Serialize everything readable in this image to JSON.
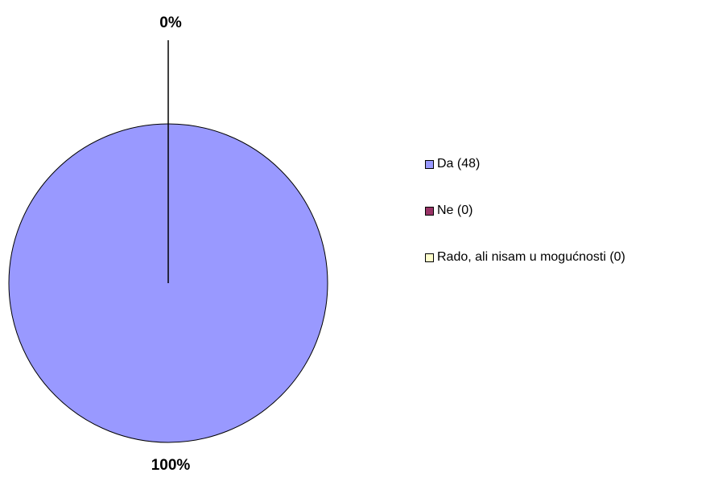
{
  "chart_data": {
    "type": "pie",
    "slices": [
      {
        "label": "Da (48)",
        "value": 48,
        "percent_label": "100%",
        "color": "#9999ff"
      },
      {
        "label": "Ne (0)",
        "value": 0,
        "percent_label": "0%",
        "color": "#993366"
      },
      {
        "label": "Rado, ali nisam u mogućnosti (0)",
        "value": 0,
        "percent_label": "",
        "color": "#ffffcc"
      }
    ],
    "legend_position": "right"
  }
}
